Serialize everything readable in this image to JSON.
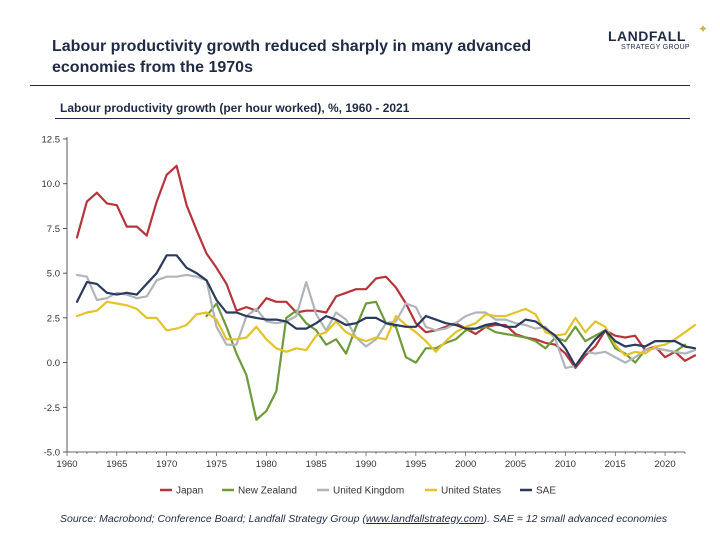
{
  "slide": {
    "title": "Labour productivity growth reduced sharply in many advanced economies from the 1970s",
    "logo_name": "LANDFALL",
    "logo_sub": "STRATEGY GROUP",
    "source_prefix": "Source: Macrobond; Conference Board; Landfall Strategy Group (",
    "source_link": "www.landfallstrategy.com",
    "source_suffix": ").  SAE = 12 small advanced economies"
  },
  "chart_data": {
    "type": "line",
    "title": "Labour productivity growth (per hour worked), %, 1960 - 2021",
    "xlabel": "",
    "ylabel": "",
    "xlim": [
      1960,
      2022
    ],
    "ylim": [
      -5.0,
      12.5
    ],
    "x_ticks": [
      1960,
      1965,
      1970,
      1975,
      1980,
      1985,
      1990,
      1995,
      2000,
      2005,
      2010,
      2015,
      2020
    ],
    "y_ticks": [
      "-5.0",
      "-2.5",
      "0.0",
      "2.5",
      "5.0",
      "7.5",
      "10.0",
      "12.5"
    ],
    "grid": false,
    "legend_position": "bottom",
    "series": [
      {
        "name": "Japan",
        "color": "#b8343b",
        "start": 1961,
        "values": [
          7.0,
          9.0,
          9.5,
          8.9,
          8.8,
          7.6,
          7.6,
          7.1,
          9.0,
          10.5,
          11.0,
          8.8,
          7.4,
          6.1,
          5.3,
          4.4,
          2.9,
          3.1,
          2.9,
          3.6,
          3.4,
          3.4,
          2.8,
          2.9,
          2.9,
          2.8,
          3.7,
          3.9,
          4.1,
          4.1,
          4.7,
          4.8,
          4.2,
          3.3,
          2.2,
          1.7,
          1.8,
          2.0,
          2.2,
          1.9,
          1.6,
          2.0,
          2.1,
          2.1,
          1.6,
          1.4,
          1.3,
          1.1,
          1.0,
          0.5,
          -0.3,
          0.4,
          0.9,
          1.8,
          1.5,
          1.4,
          1.5,
          0.7,
          0.9,
          0.3,
          0.6,
          0.1,
          0.4
        ]
      },
      {
        "name": "New Zealand",
        "color": "#6e9a3a",
        "start": 1974,
        "values": [
          2.6,
          3.3,
          2.0,
          0.5,
          -0.7,
          -3.2,
          -2.7,
          -1.6,
          2.5,
          2.9,
          2.2,
          1.8,
          1.0,
          1.3,
          0.5,
          2.0,
          3.3,
          3.4,
          2.2,
          2.0,
          0.3,
          0.0,
          0.8,
          0.8,
          1.1,
          1.3,
          1.8,
          1.9,
          2.0,
          1.7,
          1.6,
          1.5,
          1.4,
          1.2,
          0.8,
          1.4,
          1.2,
          2.0,
          1.2,
          1.5,
          1.8,
          0.8,
          0.5,
          0.0,
          0.7,
          0.8,
          0.7,
          0.6,
          1.0
        ]
      },
      {
        "name": "United Kingdom",
        "color": "#b0b4bb",
        "start": 1961,
        "values": [
          4.9,
          4.8,
          3.5,
          3.6,
          3.9,
          3.8,
          3.6,
          3.7,
          4.6,
          4.8,
          4.8,
          4.9,
          4.8,
          4.6,
          2.0,
          1.0,
          1.0,
          2.6,
          3.0,
          2.3,
          2.2,
          2.3,
          2.6,
          4.5,
          2.7,
          1.8,
          2.8,
          2.4,
          1.4,
          0.9,
          1.3,
          2.2,
          2.3,
          3.3,
          3.1,
          2.0,
          1.8,
          1.9,
          2.2,
          2.6,
          2.8,
          2.8,
          2.4,
          2.4,
          2.2,
          2.1,
          1.9,
          2.0,
          1.3,
          -0.3,
          -0.2,
          0.6,
          0.5,
          0.6,
          0.3,
          0.0,
          0.3,
          0.7,
          0.8,
          0.7,
          0.6,
          0.5,
          0.7
        ]
      },
      {
        "name": "United States",
        "color": "#e3c32a",
        "start": 1961,
        "values": [
          2.6,
          2.8,
          2.9,
          3.4,
          3.3,
          3.2,
          3.0,
          2.5,
          2.5,
          1.8,
          1.9,
          2.1,
          2.7,
          2.8,
          2.4,
          1.3,
          1.3,
          1.4,
          2.0,
          1.3,
          0.8,
          0.6,
          0.8,
          0.7,
          1.5,
          1.7,
          2.3,
          1.7,
          1.4,
          1.2,
          1.4,
          1.3,
          2.6,
          2.1,
          1.7,
          1.2,
          0.6,
          1.2,
          1.7,
          2.0,
          2.2,
          2.7,
          2.6,
          2.6,
          2.8,
          3.0,
          2.7,
          1.7,
          1.5,
          1.6,
          2.5,
          1.7,
          2.3,
          2.0,
          1.0,
          0.4,
          0.6,
          0.5,
          0.9,
          1.0,
          1.3,
          1.7,
          2.1
        ]
      },
      {
        "name": "SAE",
        "color": "#2a3a5c",
        "start": 1961,
        "values": [
          3.4,
          4.5,
          4.4,
          3.9,
          3.8,
          3.9,
          3.8,
          4.4,
          5.0,
          6.0,
          6.0,
          5.3,
          5.0,
          4.6,
          3.5,
          2.8,
          2.8,
          2.6,
          2.5,
          2.4,
          2.4,
          2.3,
          1.9,
          1.9,
          2.2,
          2.6,
          2.4,
          2.1,
          2.2,
          2.5,
          2.5,
          2.2,
          2.1,
          2.0,
          2.0,
          2.6,
          2.4,
          2.2,
          2.1,
          1.9,
          1.9,
          2.1,
          2.2,
          2.0,
          2.0,
          2.4,
          2.3,
          1.9,
          1.5,
          0.8,
          -0.2,
          0.6,
          1.3,
          1.8,
          1.2,
          0.9,
          1.0,
          0.9,
          1.2,
          1.2,
          1.2,
          0.9,
          0.8
        ]
      }
    ]
  }
}
